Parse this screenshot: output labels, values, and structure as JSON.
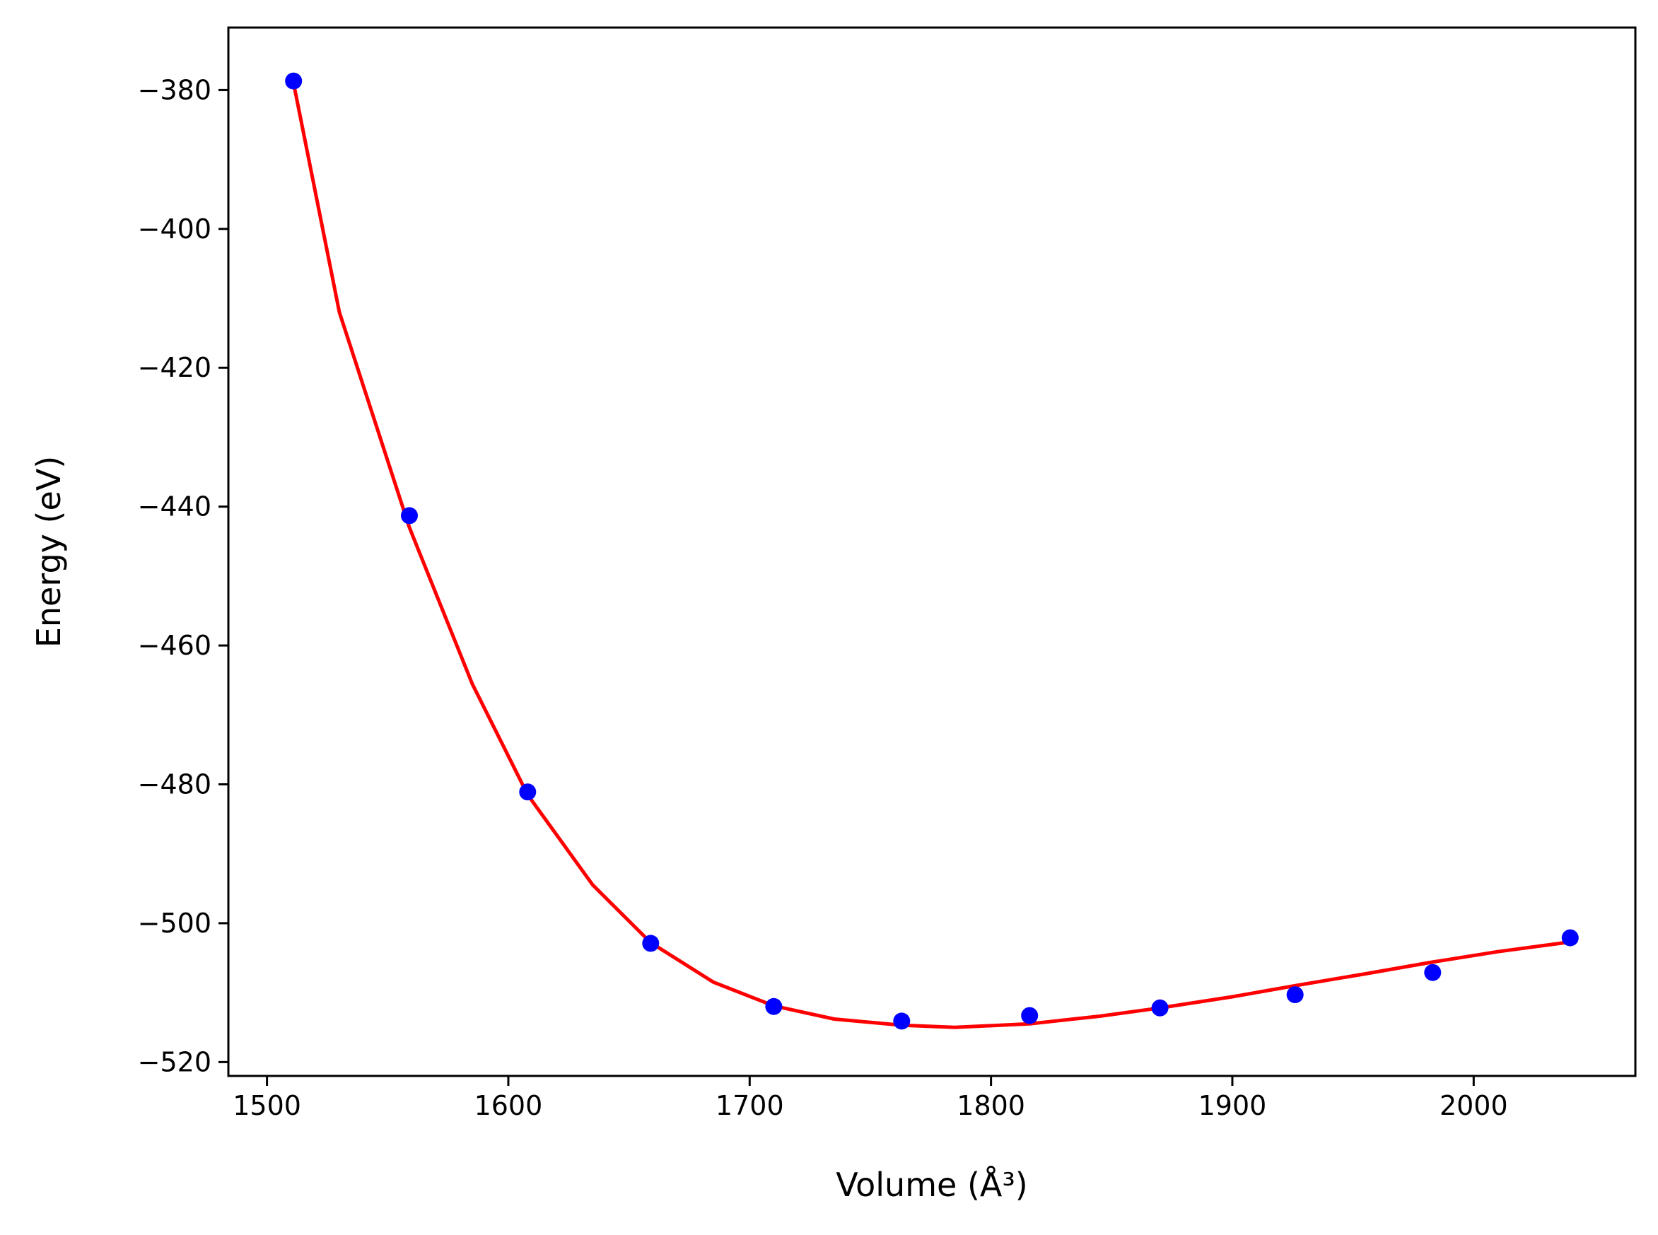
{
  "chart_data": {
    "type": "scatter",
    "xlabel": "Volume",
    "xlabel_unit": "(Å³)",
    "ylabel": "Energy",
    "ylabel_unit": "(eV)",
    "xlim": [
      1484,
      2067
    ],
    "ylim": [
      -522,
      -371
    ],
    "grid": false,
    "x_ticks": [
      1500,
      1600,
      1700,
      1800,
      1900,
      2000
    ],
    "x_tick_labels": [
      "1500",
      "1600",
      "1700",
      "1800",
      "1900",
      "2000"
    ],
    "y_ticks": [
      -380,
      -400,
      -420,
      -440,
      -460,
      -480,
      -500,
      -520
    ],
    "y_tick_labels": [
      "−380",
      "−400",
      "−420",
      "−440",
      "−460",
      "−480",
      "−500",
      "−520"
    ],
    "series": [
      {
        "kind": "points",
        "color": "#0000ff",
        "x": [
          1511,
          1559,
          1608,
          1659,
          1710,
          1763,
          1816,
          1870,
          1926,
          1983,
          2040
        ],
        "y": [
          -378.7,
          -441.3,
          -481.1,
          -502.9,
          -512.0,
          -514.1,
          -513.3,
          -512.2,
          -510.3,
          -507.1,
          -502.1
        ]
      },
      {
        "kind": "fit-curve",
        "color": "#ff0000",
        "x": [
          1511,
          1530,
          1559,
          1585,
          1608,
          1635,
          1659,
          1685,
          1710,
          1735,
          1763,
          1785,
          1816,
          1845,
          1870,
          1900,
          1926,
          1955,
          1983,
          2010,
          2040
        ],
        "y": [
          -379.0,
          -412.0,
          -443.0,
          -465.5,
          -481.5,
          -494.5,
          -502.8,
          -508.5,
          -511.9,
          -513.8,
          -514.7,
          -515.0,
          -514.5,
          -513.4,
          -512.2,
          -510.6,
          -509.0,
          -507.3,
          -505.6,
          -504.1,
          -502.7
        ]
      }
    ]
  }
}
